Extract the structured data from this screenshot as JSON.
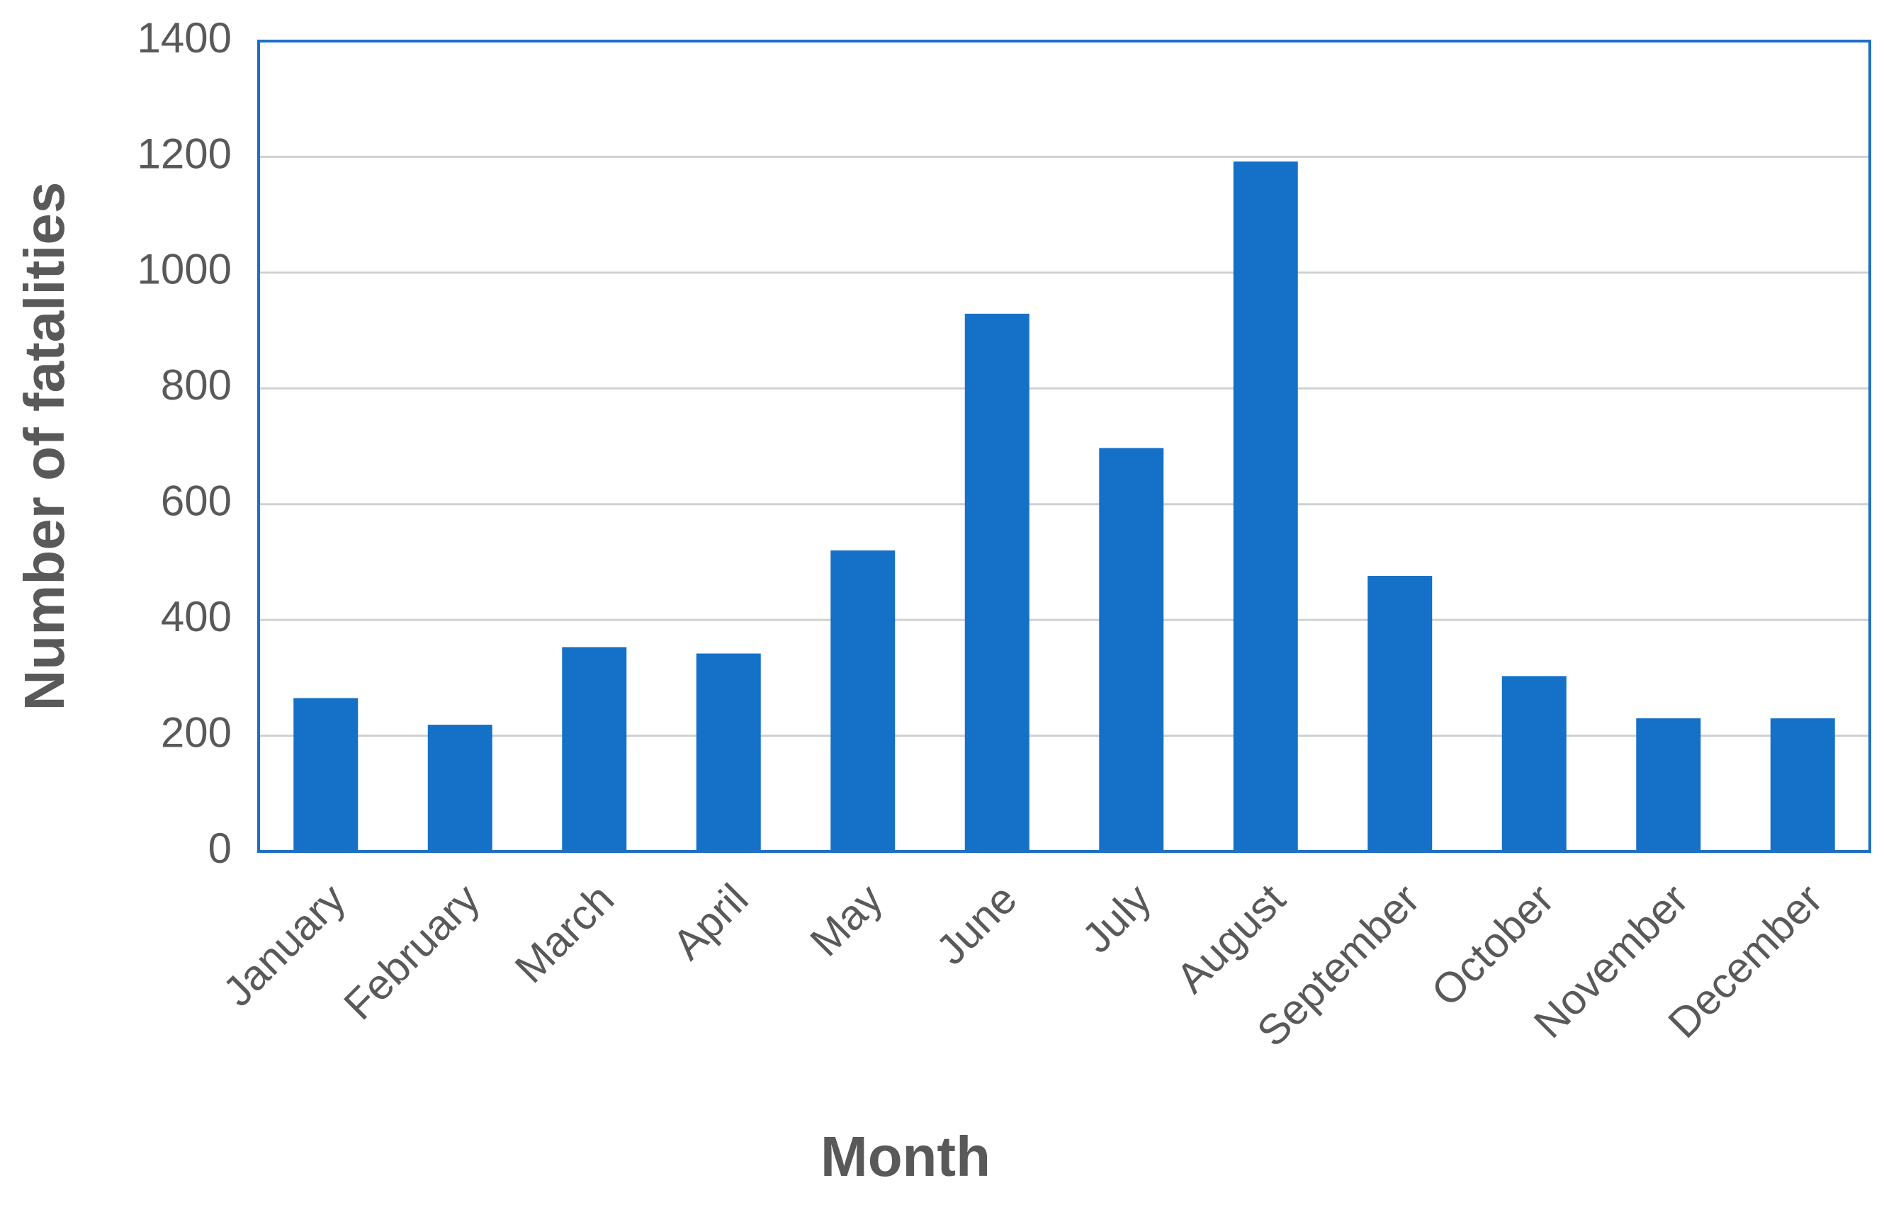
{
  "chart_data": {
    "type": "bar",
    "x_label": "Month",
    "y_label": "Number of fatalities",
    "categories": [
      "January",
      "February",
      "March",
      "April",
      "May",
      "June",
      "July",
      "August",
      "September",
      "October",
      "November",
      "December"
    ],
    "values": [
      265,
      219,
      353,
      342,
      520,
      929,
      697,
      1192,
      476,
      303,
      230,
      230
    ],
    "color": "#1570c8",
    "ylim": [
      0,
      1400
    ],
    "yticks": [
      0,
      200,
      400,
      600,
      800,
      1000,
      1200,
      1400
    ],
    "grid": true
  }
}
